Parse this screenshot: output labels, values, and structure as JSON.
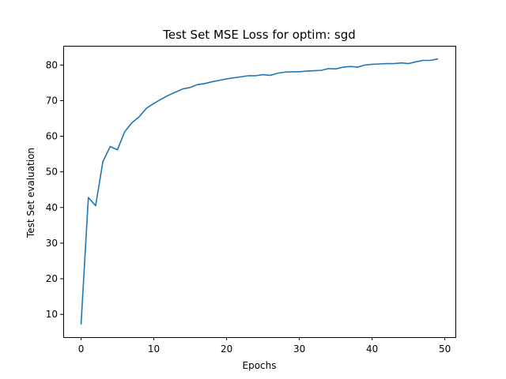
{
  "chart_data": {
    "type": "line",
    "title": "Test Set MSE Loss for optim: sgd",
    "xlabel": "Epochs",
    "ylabel": "Test Set evaluation",
    "xlim": [
      -2.45,
      51.45
    ],
    "ylim": [
      3.6,
      85.4
    ],
    "xticks": [
      0,
      10,
      20,
      30,
      40,
      50
    ],
    "yticks": [
      10,
      20,
      30,
      40,
      50,
      60,
      70,
      80
    ],
    "grid": false,
    "series": [
      {
        "color": "#1f77b4",
        "x": [
          0,
          1,
          2,
          3,
          4,
          5,
          6,
          7,
          8,
          9,
          10,
          11,
          12,
          13,
          14,
          15,
          16,
          17,
          18,
          19,
          20,
          21,
          22,
          23,
          24,
          25,
          26,
          27,
          28,
          29,
          30,
          31,
          32,
          33,
          34,
          35,
          36,
          37,
          38,
          39,
          40,
          41,
          42,
          43,
          44,
          45,
          46,
          47,
          48,
          49
        ],
        "y": [
          7.3,
          42.8,
          40.5,
          52.9,
          57.1,
          56.2,
          61.3,
          63.8,
          65.5,
          67.9,
          69.2,
          70.4,
          71.5,
          72.4,
          73.3,
          73.7,
          74.5,
          74.8,
          75.3,
          75.7,
          76.1,
          76.4,
          76.7,
          77.0,
          77.0,
          77.3,
          77.1,
          77.7,
          78.0,
          78.1,
          78.1,
          78.3,
          78.4,
          78.5,
          79.0,
          78.9,
          79.4,
          79.6,
          79.4,
          80.0,
          80.2,
          80.3,
          80.4,
          80.4,
          80.6,
          80.4,
          80.9,
          81.3,
          81.3,
          81.7
        ]
      }
    ]
  }
}
